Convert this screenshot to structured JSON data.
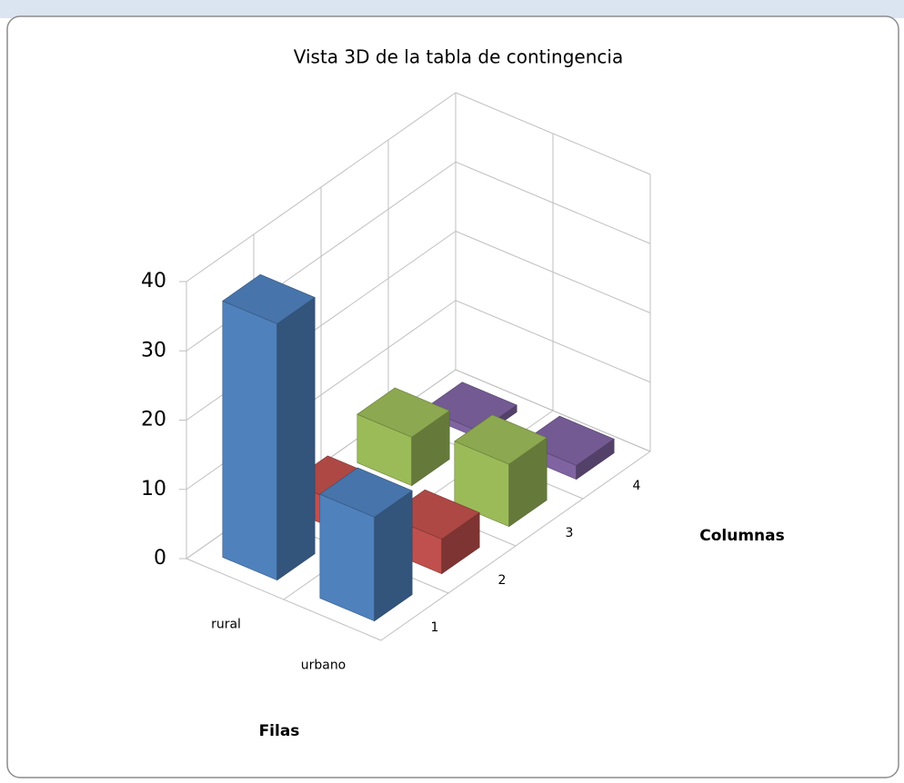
{
  "chart_data": {
    "type": "bar3d",
    "title": "Vista 3D de la tabla de contingencia",
    "x_label": "Filas",
    "z_label": "Columnas",
    "categories": [
      "rural",
      "urbano"
    ],
    "series": [
      {
        "name": "1",
        "color": "#4f81bd",
        "values": [
          37,
          15
        ]
      },
      {
        "name": "2",
        "color": "#c0504d",
        "values": [
          4,
          5
        ]
      },
      {
        "name": "3",
        "color": "#9bbb59",
        "values": [
          7,
          9
        ]
      },
      {
        "name": "4",
        "color": "#8064a2",
        "values": [
          1,
          2
        ]
      }
    ],
    "ylim": [
      0,
      40
    ],
    "yticks": [
      0,
      10,
      20,
      30,
      40
    ],
    "grid": true
  }
}
